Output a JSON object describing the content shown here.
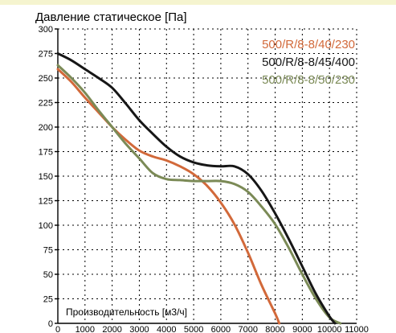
{
  "chart_data": {
    "type": "line",
    "ylabel": "Давление статическое [Па]",
    "xlabel": "Производительность [м3/ч]",
    "xlim": [
      0,
      11000
    ],
    "ylim": [
      0,
      300
    ],
    "x_ticks": [
      0,
      1000,
      2000,
      3000,
      4000,
      5000,
      6000,
      7000,
      8000,
      9000,
      10000,
      11000
    ],
    "y_ticks": [
      0,
      25,
      50,
      75,
      100,
      125,
      150,
      175,
      200,
      225,
      250,
      275,
      300
    ],
    "grid": true,
    "legend_position": "top-right",
    "series": [
      {
        "name": "500/R/8-8/40/230",
        "color": "#d2693a",
        "points": [
          [
            0,
            259
          ],
          [
            500,
            246
          ],
          [
            1000,
            230
          ],
          [
            1500,
            215
          ],
          [
            2000,
            200
          ],
          [
            2500,
            187
          ],
          [
            3000,
            176
          ],
          [
            3500,
            170
          ],
          [
            4000,
            166
          ],
          [
            4500,
            160
          ],
          [
            5000,
            152
          ],
          [
            5500,
            140
          ],
          [
            6000,
            123
          ],
          [
            6500,
            101
          ],
          [
            7000,
            72
          ],
          [
            7500,
            39
          ],
          [
            8000,
            10
          ],
          [
            8150,
            0
          ]
        ]
      },
      {
        "name": "500/R/8-8/45/400",
        "color": "#161616",
        "points": [
          [
            0,
            275
          ],
          [
            500,
            268
          ],
          [
            1000,
            259
          ],
          [
            1500,
            250
          ],
          [
            2000,
            240
          ],
          [
            2500,
            224
          ],
          [
            3000,
            207
          ],
          [
            3500,
            193
          ],
          [
            4000,
            180
          ],
          [
            4500,
            170
          ],
          [
            5000,
            164
          ],
          [
            5500,
            161
          ],
          [
            6000,
            160
          ],
          [
            6500,
            160
          ],
          [
            7000,
            152
          ],
          [
            7500,
            135
          ],
          [
            8000,
            112
          ],
          [
            8500,
            86
          ],
          [
            9000,
            58
          ],
          [
            9500,
            30
          ],
          [
            10000,
            7
          ],
          [
            10200,
            0
          ]
        ]
      },
      {
        "name": "500/R/8-8/50/230",
        "color": "#7b8a56",
        "points": [
          [
            0,
            263
          ],
          [
            500,
            250
          ],
          [
            1000,
            235
          ],
          [
            1500,
            217
          ],
          [
            2000,
            200
          ],
          [
            2500,
            183
          ],
          [
            3000,
            168
          ],
          [
            3500,
            153
          ],
          [
            4000,
            147
          ],
          [
            4500,
            146
          ],
          [
            5000,
            145
          ],
          [
            5500,
            145
          ],
          [
            6000,
            145
          ],
          [
            6500,
            142
          ],
          [
            7000,
            134
          ],
          [
            7500,
            119
          ],
          [
            8000,
            101
          ],
          [
            8500,
            77
          ],
          [
            9000,
            50
          ],
          [
            9500,
            25
          ],
          [
            10000,
            6
          ],
          [
            10400,
            0
          ]
        ]
      }
    ]
  }
}
